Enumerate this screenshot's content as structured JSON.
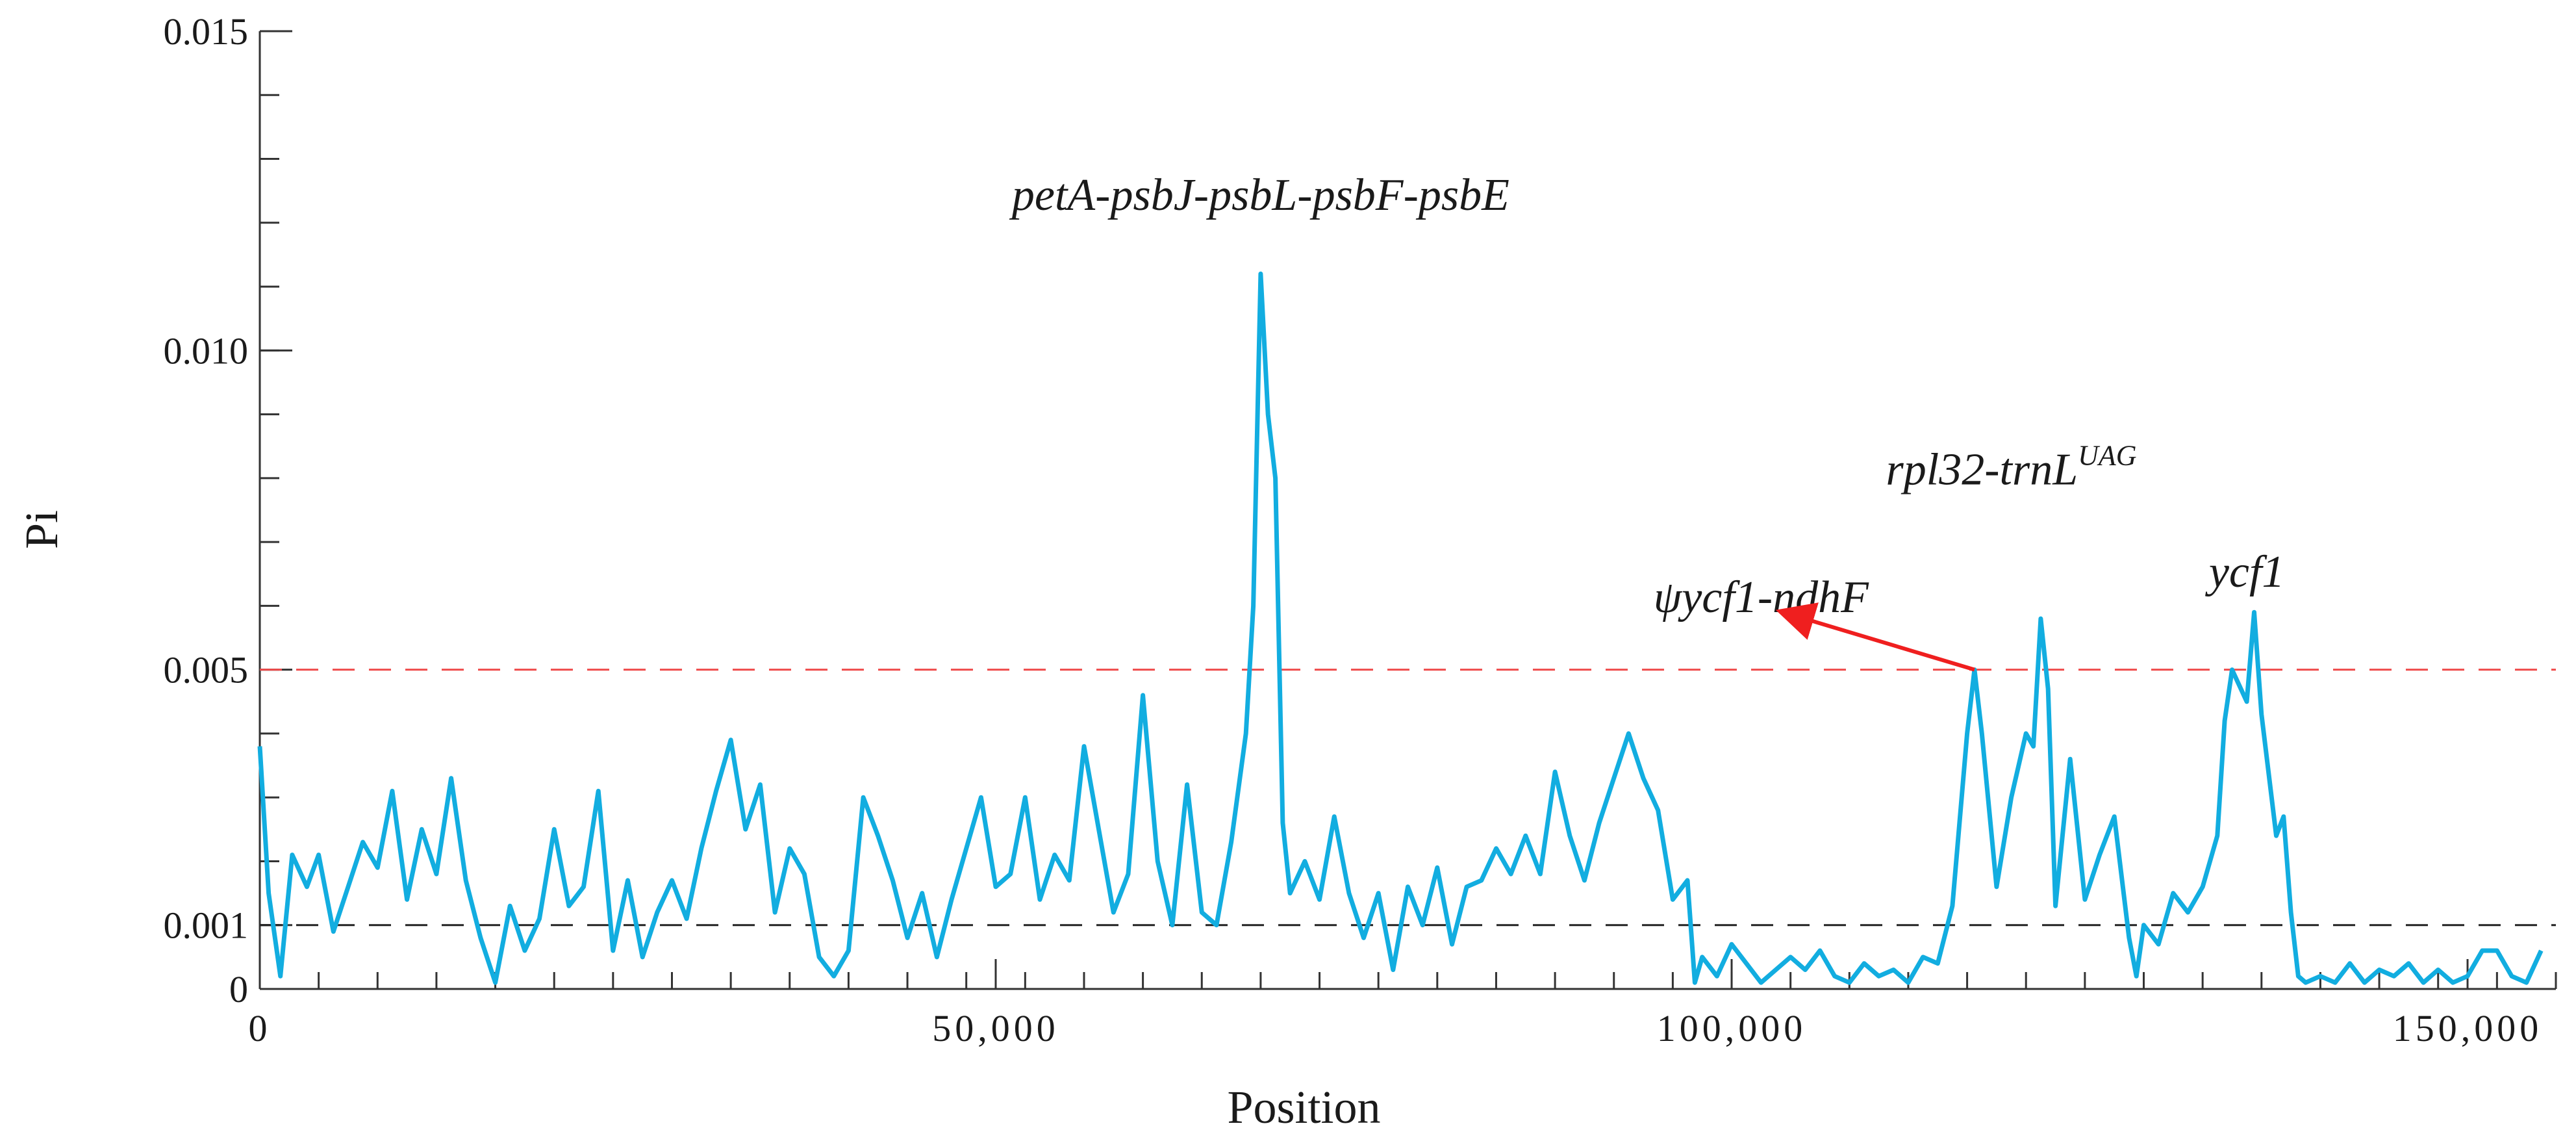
{
  "chart_data": {
    "type": "line",
    "title": "",
    "xlabel": "Position",
    "ylabel": "Pi",
    "xlim": [
      0,
      156000
    ],
    "ylim": [
      0,
      0.015
    ],
    "x_ticks": [
      {
        "value": 0,
        "label": "0"
      },
      {
        "value": 50000,
        "label": "50,000"
      },
      {
        "value": 100000,
        "label": "100,000"
      },
      {
        "value": 150000,
        "label": "150,000"
      }
    ],
    "y_ticks": [
      {
        "value": 0,
        "label": "0"
      },
      {
        "value": 0.001,
        "label": "0.001"
      },
      {
        "value": 0.005,
        "label": "0.005"
      },
      {
        "value": 0.01,
        "label": "0.010"
      },
      {
        "value": 0.015,
        "label": "0.015"
      }
    ],
    "x_minor_step": 4000,
    "y_minor_step": 0.001,
    "thresholds": [
      {
        "name": "high-threshold",
        "value": 0.005,
        "color": "#ef4b4b"
      },
      {
        "name": "low-threshold",
        "value": 0.001,
        "color": "#222222"
      }
    ],
    "series": [
      {
        "name": "Pi",
        "color": "#12ade0",
        "points": [
          [
            0,
            0.0038
          ],
          [
            600,
            0.0015
          ],
          [
            1400,
            0.0002
          ],
          [
            2200,
            0.0021
          ],
          [
            3200,
            0.0016
          ],
          [
            4000,
            0.0021
          ],
          [
            5000,
            0.0009
          ],
          [
            6000,
            0.0016
          ],
          [
            7000,
            0.0023
          ],
          [
            8000,
            0.0019
          ],
          [
            9000,
            0.0031
          ],
          [
            10000,
            0.0014
          ],
          [
            11000,
            0.0025
          ],
          [
            12000,
            0.0018
          ],
          [
            13000,
            0.0033
          ],
          [
            14000,
            0.0017
          ],
          [
            15000,
            0.0008
          ],
          [
            16000,
            0.0001
          ],
          [
            17000,
            0.0013
          ],
          [
            18000,
            0.0006
          ],
          [
            19000,
            0.0011
          ],
          [
            20000,
            0.0025
          ],
          [
            21000,
            0.0013
          ],
          [
            22000,
            0.0016
          ],
          [
            23000,
            0.0031
          ],
          [
            24000,
            0.0006
          ],
          [
            25000,
            0.0017
          ],
          [
            26000,
            0.0005
          ],
          [
            27000,
            0.0012
          ],
          [
            28000,
            0.0017
          ],
          [
            29000,
            0.0011
          ],
          [
            30000,
            0.0022
          ],
          [
            31000,
            0.0031
          ],
          [
            32000,
            0.0039
          ],
          [
            33000,
            0.0025
          ],
          [
            34000,
            0.0032
          ],
          [
            35000,
            0.0012
          ],
          [
            36000,
            0.0022
          ],
          [
            37000,
            0.0018
          ],
          [
            38000,
            0.0005
          ],
          [
            39000,
            0.0002
          ],
          [
            40000,
            0.0006
          ],
          [
            41000,
            0.003
          ],
          [
            42000,
            0.0024
          ],
          [
            43000,
            0.0017
          ],
          [
            44000,
            0.0008
          ],
          [
            45000,
            0.0015
          ],
          [
            46000,
            0.0005
          ],
          [
            47000,
            0.0014
          ],
          [
            48000,
            0.0022
          ],
          [
            49000,
            0.003
          ],
          [
            50000,
            0.0016
          ],
          [
            51000,
            0.0018
          ],
          [
            52000,
            0.003
          ],
          [
            53000,
            0.0014
          ],
          [
            54000,
            0.0021
          ],
          [
            55000,
            0.0017
          ],
          [
            56000,
            0.0038
          ],
          [
            57000,
            0.0025
          ],
          [
            58000,
            0.0012
          ],
          [
            59000,
            0.0018
          ],
          [
            60000,
            0.0046
          ],
          [
            61000,
            0.002
          ],
          [
            62000,
            0.001
          ],
          [
            63000,
            0.0032
          ],
          [
            64000,
            0.0012
          ],
          [
            65000,
            0.001
          ],
          [
            66000,
            0.0023
          ],
          [
            67000,
            0.004
          ],
          [
            67500,
            0.006
          ],
          [
            68000,
            0.0112
          ],
          [
            68500,
            0.009
          ],
          [
            69000,
            0.008
          ],
          [
            69500,
            0.0026
          ],
          [
            70000,
            0.0015
          ],
          [
            71000,
            0.002
          ],
          [
            72000,
            0.0014
          ],
          [
            73000,
            0.0027
          ],
          [
            74000,
            0.0015
          ],
          [
            75000,
            0.0008
          ],
          [
            76000,
            0.0015
          ],
          [
            77000,
            0.0003
          ],
          [
            78000,
            0.0016
          ],
          [
            79000,
            0.001
          ],
          [
            80000,
            0.0019
          ],
          [
            81000,
            0.0007
          ],
          [
            82000,
            0.0016
          ],
          [
            83000,
            0.0017
          ],
          [
            84000,
            0.0022
          ],
          [
            85000,
            0.0018
          ],
          [
            86000,
            0.0024
          ],
          [
            87000,
            0.0018
          ],
          [
            88000,
            0.0034
          ],
          [
            89000,
            0.0024
          ],
          [
            90000,
            0.0017
          ],
          [
            91000,
            0.0026
          ],
          [
            92000,
            0.0033
          ],
          [
            93000,
            0.004
          ],
          [
            94000,
            0.0033
          ],
          [
            95000,
            0.0028
          ],
          [
            96000,
            0.0014
          ],
          [
            97000,
            0.0017
          ],
          [
            97500,
            0.0001
          ],
          [
            98000,
            0.0005
          ],
          [
            99000,
            0.0002
          ],
          [
            100000,
            0.0007
          ],
          [
            101000,
            0.0004
          ],
          [
            102000,
            0.0001
          ],
          [
            103000,
            0.0003
          ],
          [
            104000,
            0.0005
          ],
          [
            105000,
            0.0003
          ],
          [
            106000,
            0.0006
          ],
          [
            107000,
            0.0002
          ],
          [
            108000,
            0.0001
          ],
          [
            109000,
            0.0004
          ],
          [
            110000,
            0.0002
          ],
          [
            111000,
            0.0003
          ],
          [
            112000,
            0.0001
          ],
          [
            113000,
            0.0005
          ],
          [
            114000,
            0.0004
          ],
          [
            115000,
            0.0013
          ],
          [
            116000,
            0.004
          ],
          [
            116500,
            0.005
          ],
          [
            117000,
            0.004
          ],
          [
            118000,
            0.0016
          ],
          [
            119000,
            0.003
          ],
          [
            120000,
            0.004
          ],
          [
            120500,
            0.0038
          ],
          [
            121000,
            0.0058
          ],
          [
            121500,
            0.0047
          ],
          [
            122000,
            0.0013
          ],
          [
            123000,
            0.0036
          ],
          [
            124000,
            0.0014
          ],
          [
            125000,
            0.0021
          ],
          [
            126000,
            0.0027
          ],
          [
            127000,
            0.0008
          ],
          [
            127500,
            0.0002
          ],
          [
            128000,
            0.001
          ],
          [
            129000,
            0.0007
          ],
          [
            130000,
            0.0015
          ],
          [
            131000,
            0.0012
          ],
          [
            132000,
            0.0016
          ],
          [
            133000,
            0.0024
          ],
          [
            133500,
            0.0042
          ],
          [
            134000,
            0.005
          ],
          [
            135000,
            0.0045
          ],
          [
            135500,
            0.0059
          ],
          [
            136000,
            0.0043
          ],
          [
            137000,
            0.0024
          ],
          [
            137500,
            0.0027
          ],
          [
            138000,
            0.0012
          ],
          [
            138500,
            0.0002
          ],
          [
            139000,
            0.0001
          ],
          [
            140000,
            0.0002
          ],
          [
            141000,
            0.0001
          ],
          [
            142000,
            0.0004
          ],
          [
            143000,
            0.0001
          ],
          [
            144000,
            0.0003
          ],
          [
            145000,
            0.0002
          ],
          [
            146000,
            0.0004
          ],
          [
            147000,
            0.0001
          ],
          [
            148000,
            0.0003
          ],
          [
            149000,
            0.0001
          ],
          [
            150000,
            0.0002
          ],
          [
            151000,
            0.0006
          ],
          [
            152000,
            0.0006
          ],
          [
            153000,
            0.0002
          ],
          [
            154000,
            0.0001
          ],
          [
            155000,
            0.0006
          ]
        ]
      }
    ],
    "annotations": [
      {
        "id": "petA",
        "text": "petA-psbJ-psbL-psbF-psbE",
        "sup": "",
        "x": 68000,
        "y": 0.0122
      },
      {
        "id": "rpl32",
        "text": "rpl32-trnL",
        "sup": "UAG",
        "x": 119000,
        "y": 0.0079
      },
      {
        "id": "ycf1",
        "text": "ycf1",
        "sup": "",
        "x": 135000,
        "y": 0.0063
      },
      {
        "id": "psiycf1",
        "text": "ψycf1-ndhF",
        "sup": "",
        "x": 102000,
        "y": 0.0059
      }
    ],
    "arrow": {
      "from_x": 116500,
      "from_y": 0.005,
      "to_x": 103500,
      "to_y": 0.0059,
      "color": "#ef1f1f"
    }
  }
}
